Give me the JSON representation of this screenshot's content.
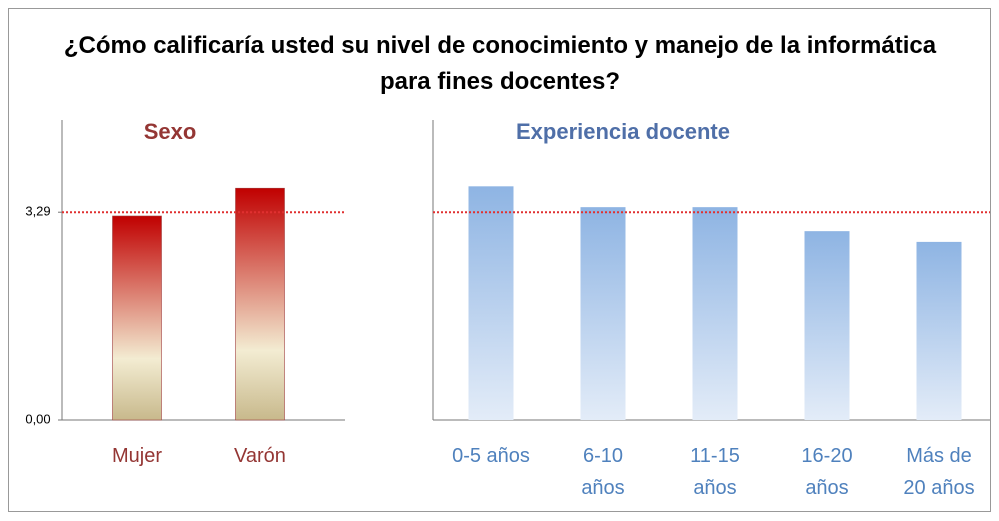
{
  "title": "¿Cómo calificaría usted su nivel de conocimiento y manejo de la informática para fines docentes?",
  "chart_data": [
    {
      "type": "bar",
      "title": "Sexo",
      "categories": [
        "Mujer",
        "Varón"
      ],
      "values": [
        3.23,
        3.67
      ],
      "color": "#c00000",
      "ylim": [
        0,
        4.75
      ],
      "yticks": [
        {
          "value": 0,
          "label": "0,00"
        },
        {
          "value": 3.29,
          "label": "3,29"
        }
      ],
      "reference_line": 3.29
    },
    {
      "type": "bar",
      "title": "Experiencia docente",
      "categories": [
        "0-5 años",
        "6-10\naños",
        "11-15\naños",
        "16-20\naños",
        "Más de\n20 años"
      ],
      "values": [
        3.7,
        3.37,
        3.37,
        2.99,
        2.82
      ],
      "color": "#8eb4e3",
      "ylim": [
        0,
        4.75
      ],
      "reference_line": 3.29
    }
  ]
}
